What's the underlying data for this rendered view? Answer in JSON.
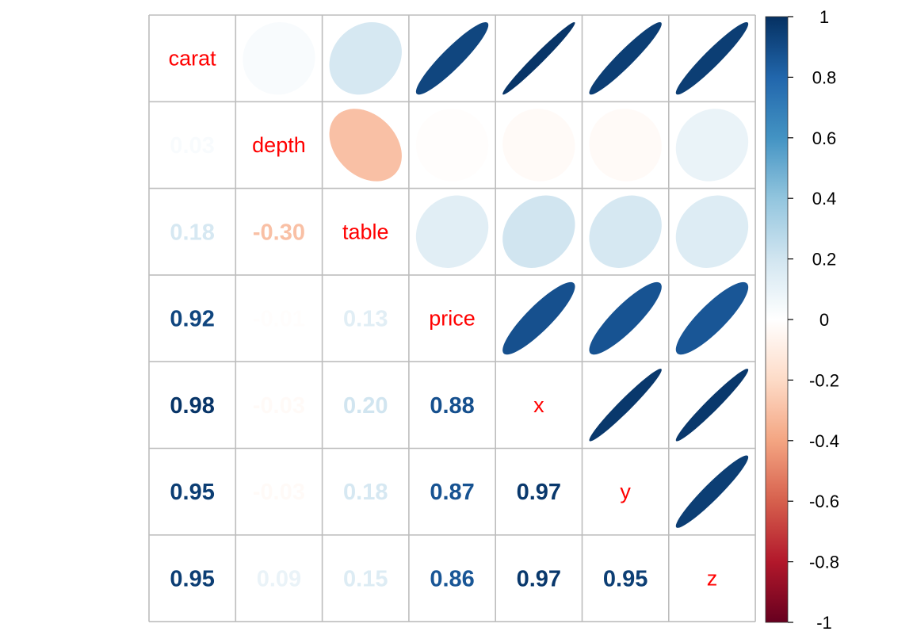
{
  "chart_data": {
    "type": "heatmap",
    "variables": [
      "carat",
      "depth",
      "table",
      "price",
      "x",
      "y",
      "z"
    ],
    "matrix": [
      [
        1.0,
        0.03,
        0.18,
        0.92,
        0.98,
        0.95,
        0.95
      ],
      [
        0.03,
        1.0,
        -0.3,
        -0.01,
        -0.03,
        -0.03,
        0.09
      ],
      [
        0.18,
        -0.3,
        1.0,
        0.13,
        0.2,
        0.18,
        0.15
      ],
      [
        0.92,
        -0.01,
        0.13,
        1.0,
        0.88,
        0.87,
        0.86
      ],
      [
        0.98,
        -0.03,
        0.2,
        0.88,
        1.0,
        0.97,
        0.97
      ],
      [
        0.95,
        -0.03,
        0.18,
        0.87,
        0.97,
        1.0,
        0.95
      ],
      [
        0.95,
        0.09,
        0.15,
        0.86,
        0.97,
        0.95,
        1.0
      ]
    ],
    "upper": "ellipse",
    "lower": "number",
    "diagonal": "label",
    "label_color": "#ff0000",
    "colorbar": {
      "range": [
        -1,
        1
      ],
      "ticks": [
        "1",
        "0.8",
        "0.6",
        "0.4",
        "0.2",
        "0",
        "-0.2",
        "-0.4",
        "-0.6",
        "-0.8",
        "-1"
      ],
      "palette": [
        "#67001F",
        "#B2182B",
        "#D6604D",
        "#F4A582",
        "#FDDBC7",
        "#FFFFFF",
        "#D1E5F0",
        "#92C5DE",
        "#4393C3",
        "#2166AC",
        "#053061"
      ]
    },
    "grid": true
  }
}
